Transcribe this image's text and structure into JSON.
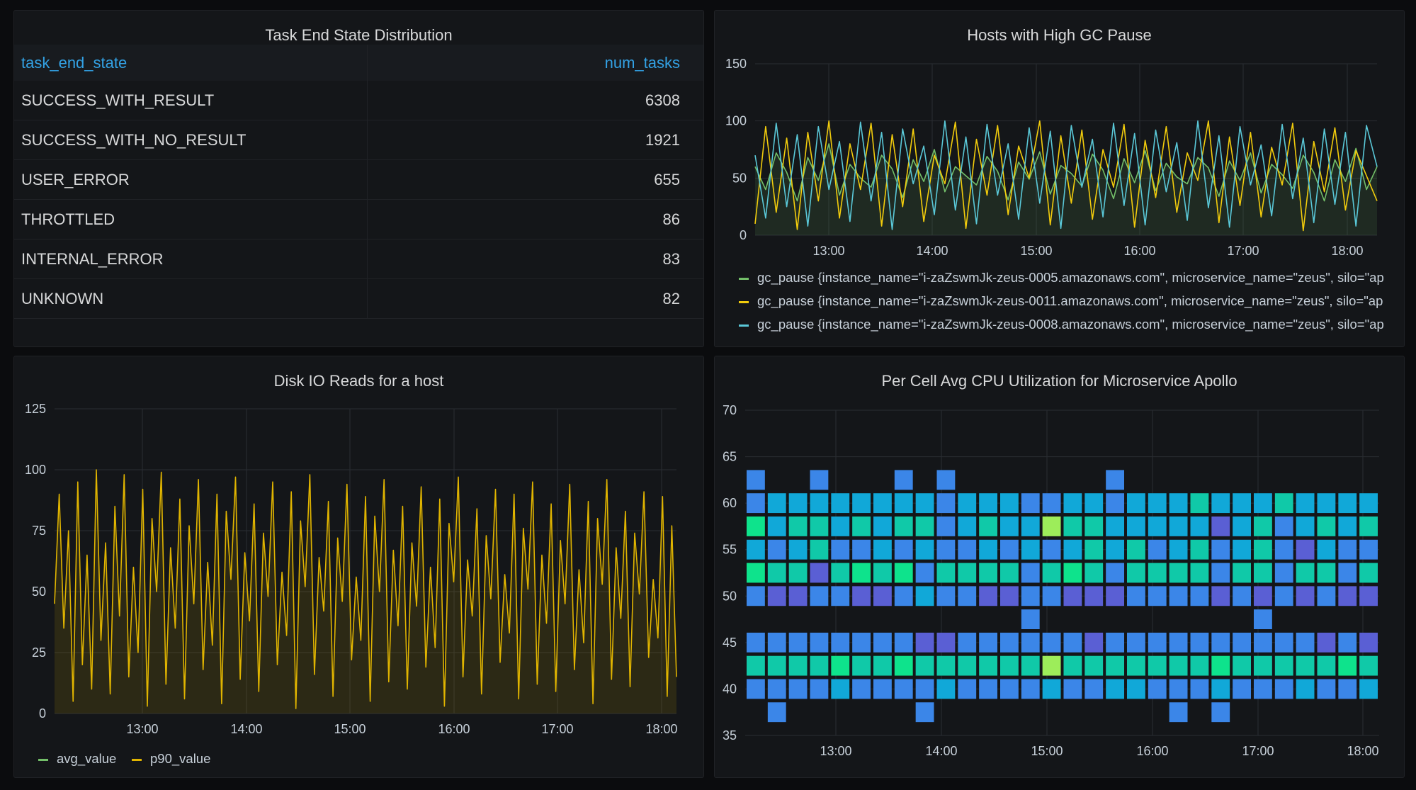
{
  "table_panel": {
    "title": "Task End State Distribution",
    "columns": [
      "task_end_state",
      "num_tasks"
    ],
    "rows": [
      [
        "SUCCESS_WITH_RESULT",
        "6308"
      ],
      [
        "SUCCESS_WITH_NO_RESULT",
        "1921"
      ],
      [
        "USER_ERROR",
        "655"
      ],
      [
        "THROTTLED",
        "86"
      ],
      [
        "INTERNAL_ERROR",
        "83"
      ],
      [
        "UNKNOWN",
        "82"
      ]
    ]
  },
  "colors": {
    "background": "#0b0c0e",
    "panel": "#141619",
    "link_blue": "#33a2e5",
    "series_green": "#73bf69",
    "series_yellow": "#f2cc0c",
    "series_orange": "#fade2a",
    "series_cyan": "#5ac8d8",
    "p90_yellow": "#e0b400"
  },
  "chart_data": [
    {
      "type": "table",
      "title": "Task End State Distribution",
      "columns": [
        "task_end_state",
        "num_tasks"
      ],
      "rows": [
        [
          "SUCCESS_WITH_RESULT",
          6308
        ],
        [
          "SUCCESS_WITH_NO_RESULT",
          1921
        ],
        [
          "USER_ERROR",
          655
        ],
        [
          "THROTTLED",
          86
        ],
        [
          "INTERNAL_ERROR",
          83
        ],
        [
          "UNKNOWN",
          82
        ]
      ]
    },
    {
      "type": "line",
      "title": "Hosts with High GC Pause",
      "x_ticks": [
        "13:00",
        "14:00",
        "15:00",
        "16:00",
        "17:00",
        "18:00"
      ],
      "ylim": [
        0,
        150
      ],
      "y_ticks": [
        0,
        50,
        100,
        150
      ],
      "grid": true,
      "legend_position": "bottom",
      "series": [
        {
          "name": "gc_pause {instance_name=\"i-zaZswmJk-zeus-0005.amazonaws.com\", microservice_name=\"zeus\", silo=\"ap",
          "color": "#73bf69",
          "values": [
            60,
            40,
            72,
            55,
            30,
            68,
            48,
            80,
            35,
            62,
            50,
            42,
            70,
            58,
            33,
            66,
            47,
            75,
            38,
            60,
            52,
            44,
            69,
            56,
            31,
            64,
            49,
            73,
            36,
            61,
            54,
            43,
            71,
            57,
            32,
            67,
            46,
            74,
            39,
            63,
            51,
            45,
            68,
            59,
            34,
            65,
            48,
            72,
            37,
            62,
            53,
            41,
            70,
            55,
            30,
            66,
            47,
            76,
            40,
            60
          ]
        },
        {
          "name": "gc_pause {instance_name=\"i-zaZswmJk-zeus-0011.amazonaws.com\", microservice_name=\"zeus\", silo=\"ap",
          "color": "#f2cc0c",
          "values": [
            10,
            95,
            20,
            85,
            5,
            90,
            30,
            100,
            15,
            80,
            40,
            98,
            8,
            88,
            25,
            93,
            12,
            70,
            45,
            99,
            6,
            84,
            35,
            96,
            18,
            78,
            50,
            100,
            9,
            87,
            28,
            92,
            14,
            75,
            42,
            97,
            7,
            83,
            33,
            95,
            20,
            72,
            48,
            100,
            11,
            86,
            26,
            90,
            16,
            77,
            44,
            98,
            4,
            82,
            38,
            94,
            22,
            74,
            52,
            30
          ]
        },
        {
          "name": "gc_pause {instance_name=\"i-zaZswmJk-zeus-0008.amazonaws.com\", microservice_name=\"zeus\", silo=\"ap",
          "color": "#5ac8d8",
          "values": [
            70,
            15,
            98,
            25,
            88,
            8,
            95,
            40,
            82,
            12,
            99,
            30,
            90,
            5,
            93,
            45,
            78,
            18,
            100,
            22,
            86,
            10,
            97,
            35,
            80,
            14,
            94,
            28,
            91,
            6,
            96,
            42,
            84,
            16,
            98,
            26,
            89,
            9,
            92,
            38,
            81,
            13,
            100,
            24,
            87,
            7,
            95,
            44,
            79,
            17,
            97,
            32,
            85,
            11,
            93,
            27,
            90,
            8,
            96,
            60
          ]
        }
      ]
    },
    {
      "type": "line",
      "title": "Disk IO Reads for a host",
      "x_ticks": [
        "13:00",
        "14:00",
        "15:00",
        "16:00",
        "17:00",
        "18:00"
      ],
      "ylim": [
        0,
        125
      ],
      "y_ticks": [
        0,
        25,
        50,
        75,
        100,
        125
      ],
      "grid": true,
      "legend_position": "bottom-left",
      "series": [
        {
          "name": "avg_value",
          "color": "#73bf69",
          "values": []
        },
        {
          "name": "p90_value",
          "color": "#e0b400",
          "values": [
            45,
            90,
            35,
            75,
            5,
            95,
            20,
            65,
            10,
            100,
            30,
            70,
            8,
            85,
            40,
            98,
            15,
            60,
            25,
            92,
            3,
            80,
            50,
            99,
            12,
            68,
            35,
            88,
            6,
            77,
            45,
            96,
            18,
            62,
            28,
            90,
            4,
            83,
            55,
            97,
            14,
            66,
            38,
            86,
            9,
            74,
            48,
            95,
            20,
            58,
            32,
            91,
            2,
            79,
            52,
            98,
            16,
            64,
            42,
            87,
            7,
            72,
            46,
            94,
            22,
            56,
            30,
            89,
            5,
            81,
            50,
            96,
            13,
            67,
            36,
            85,
            10,
            70,
            44,
            93,
            19,
            60,
            27,
            88,
            3,
            78,
            54,
            97,
            15,
            63,
            40,
            84,
            8,
            73,
            47,
            92,
            21,
            57,
            33,
            90,
            6,
            76,
            51,
            95,
            12,
            65,
            37,
            86,
            9,
            71,
            45,
            94,
            18,
            59,
            29,
            87,
            4,
            80,
            53,
            96,
            14,
            68,
            39,
            83,
            11,
            74,
            49,
            91,
            23,
            55,
            31,
            89,
            7,
            77,
            15
          ]
        }
      ]
    },
    {
      "type": "heatmap",
      "title": "Per Cell Avg CPU Utilization for Microservice Apollo",
      "x_ticks": [
        "13:00",
        "14:00",
        "15:00",
        "16:00",
        "17:00",
        "18:00"
      ],
      "ylim": [
        35,
        70
      ],
      "y_ticks": [
        35,
        40,
        45,
        50,
        55,
        60,
        65,
        70
      ],
      "y_buckets": [
        37.5,
        40,
        42.5,
        45,
        47.5,
        50,
        52.5,
        55,
        57.5,
        60,
        62.5,
        65
      ],
      "grid": true,
      "columns": 30,
      "cells": [
        "..o.......................o.......o.....o......",
        "...x..............x..............x.............",
        "-"
      ],
      "matrix": [
        [
          0,
          1,
          0,
          0,
          0,
          0,
          0,
          0,
          1,
          0,
          0,
          0,
          0,
          0,
          0,
          0,
          0,
          0,
          0,
          0,
          1,
          0,
          1,
          0,
          0,
          0,
          0,
          0,
          0,
          0
        ],
        [
          1,
          1,
          1,
          1,
          2,
          1,
          1,
          1,
          1,
          2,
          1,
          1,
          1,
          1,
          2,
          1,
          1,
          2,
          2,
          1,
          1,
          1,
          2,
          1,
          1,
          1,
          2,
          1,
          1,
          2
        ],
        [
          3,
          3,
          3,
          3,
          4,
          3,
          3,
          4,
          3,
          3,
          3,
          3,
          3,
          3,
          5,
          3,
          3,
          3,
          3,
          3,
          3,
          3,
          4,
          3,
          3,
          3,
          3,
          3,
          4,
          3
        ],
        [
          1,
          1,
          1,
          1,
          1,
          1,
          1,
          1,
          0,
          0,
          1,
          1,
          1,
          1,
          1,
          1,
          0,
          1,
          1,
          1,
          1,
          1,
          1,
          1,
          1,
          1,
          1,
          0,
          1,
          0
        ],
        [
          0,
          0,
          0,
          0,
          0,
          0,
          0,
          0,
          0,
          0,
          0,
          0,
          0,
          1,
          0,
          0,
          0,
          0,
          0,
          0,
          0,
          0,
          0,
          0,
          1,
          0,
          0,
          0,
          0,
          0
        ],
        [
          1,
          0,
          0,
          1,
          1,
          0,
          0,
          1,
          2,
          1,
          1,
          0,
          0,
          1,
          1,
          0,
          0,
          0,
          1,
          1,
          1,
          1,
          0,
          1,
          0,
          1,
          0,
          1,
          0,
          0
        ],
        [
          4,
          3,
          3,
          0,
          3,
          4,
          3,
          4,
          1,
          3,
          3,
          3,
          3,
          1,
          3,
          4,
          3,
          1,
          3,
          3,
          3,
          3,
          1,
          3,
          3,
          1,
          3,
          3,
          1,
          3
        ],
        [
          2,
          1,
          2,
          3,
          1,
          1,
          2,
          1,
          2,
          1,
          1,
          2,
          1,
          2,
          1,
          2,
          3,
          2,
          3,
          1,
          2,
          3,
          1,
          2,
          3,
          1,
          0,
          2,
          1,
          1
        ],
        [
          4,
          2,
          3,
          3,
          2,
          3,
          2,
          3,
          3,
          1,
          2,
          3,
          2,
          2,
          5,
          3,
          3,
          2,
          2,
          2,
          2,
          2,
          0,
          2,
          3,
          1,
          2,
          3,
          2,
          3
        ],
        [
          1,
          2,
          2,
          2,
          2,
          2,
          2,
          2,
          2,
          1,
          2,
          2,
          2,
          1,
          1,
          2,
          2,
          1,
          2,
          2,
          2,
          3,
          2,
          2,
          2,
          3,
          2,
          2,
          2,
          2
        ],
        [
          1,
          0,
          0,
          1,
          0,
          0,
          0,
          1,
          0,
          1,
          0,
          0,
          0,
          0,
          0,
          0,
          0,
          1,
          0,
          0,
          0,
          0,
          0,
          0,
          0,
          0,
          0,
          0,
          0,
          0
        ],
        [
          0,
          0,
          0,
          0,
          0,
          0,
          0,
          0,
          0,
          0,
          0,
          0,
          0,
          0,
          0,
          0,
          0,
          0,
          0,
          0,
          0,
          0,
          0,
          0,
          0,
          0,
          0,
          0,
          0,
          0
        ]
      ]
    }
  ],
  "gc_panel": {
    "title": "Hosts with High GC Pause",
    "legend": [
      "gc_pause {instance_name=\"i-zaZswmJk-zeus-0005.amazonaws.com\", microservice_name=\"zeus\", silo=\"ap",
      "gc_pause {instance_name=\"i-zaZswmJk-zeus-0011.amazonaws.com\", microservice_name=\"zeus\", silo=\"ap",
      "gc_pause {instance_name=\"i-zaZswmJk-zeus-0008.amazonaws.com\", microservice_name=\"zeus\", silo=\"ap"
    ]
  },
  "disk_panel": {
    "title": "Disk IO Reads for a host",
    "legend": [
      "avg_value",
      "p90_value"
    ]
  },
  "cpu_panel": {
    "title": "Per Cell Avg CPU Utilization for Microservice Apollo"
  }
}
